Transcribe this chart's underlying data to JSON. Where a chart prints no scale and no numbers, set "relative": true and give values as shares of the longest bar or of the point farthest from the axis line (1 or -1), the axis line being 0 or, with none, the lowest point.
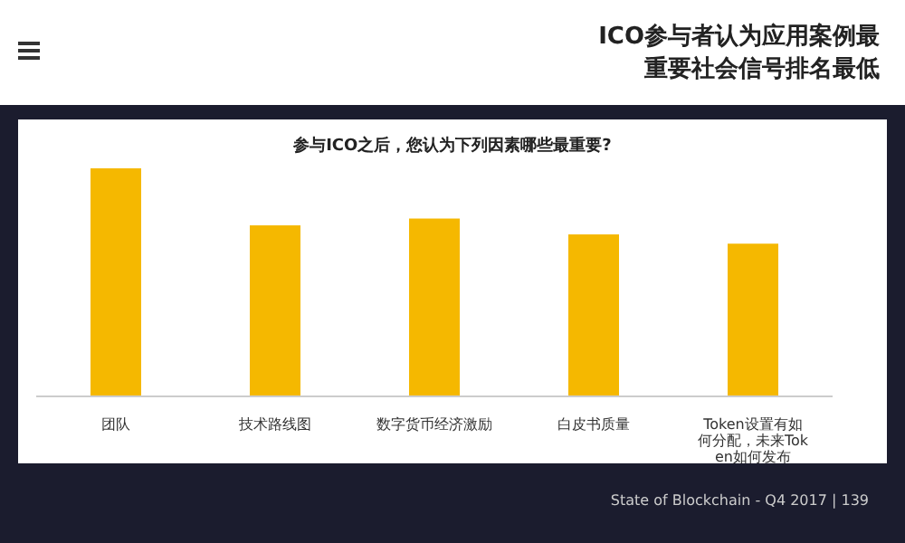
{
  "chart_data": {
    "type": "bar",
    "title": "ICO参与者认为应用案例最重要社会信号排名最低",
    "subtitle": "参与ICO之后，您认为下列因素哪些最重要?",
    "categories": [
      "团队",
      "技术路线图",
      "数字货币经济激励",
      "白皮书质量",
      "Token设置有如何分配，未来Token如何发布"
    ],
    "values": [
      1,
      0.75,
      0.78,
      0.71,
      0.67
    ],
    "color": "#f5b800",
    "relative": true,
    "annotations": [
      "State of Blockchain - Q4 2017  |  139"
    ]
  }
}
